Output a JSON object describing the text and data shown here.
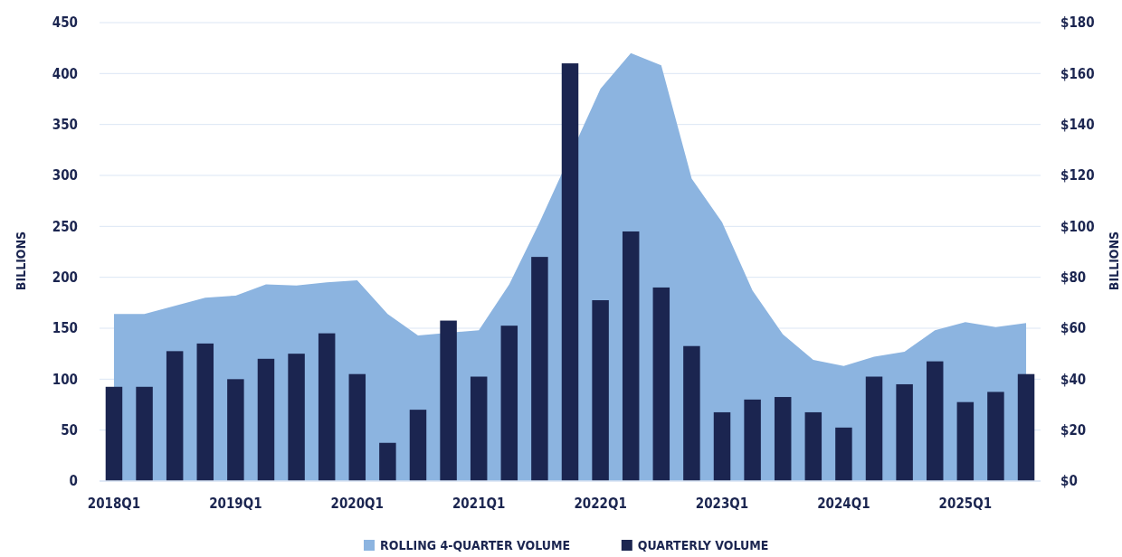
{
  "chart_data": {
    "type": "bar",
    "ylabel": "BILLIONS",
    "y2label": "BILLIONS",
    "categories": [
      "2018Q1",
      null,
      null,
      null,
      "2019Q1",
      null,
      null,
      null,
      "2020Q1",
      null,
      null,
      null,
      "2021Q1",
      null,
      null,
      null,
      "2022Q1",
      null,
      null,
      null,
      "2023Q1",
      null,
      null,
      null,
      "2024Q1",
      null,
      null,
      null,
      "2025Q1",
      null,
      null
    ],
    "series": [
      {
        "name": "ROLLING 4-QUARTER VOLUME",
        "type": "area",
        "color": "#8cb4e0",
        "values": [
          164,
          164,
          172,
          180,
          182,
          193,
          192,
          195,
          197,
          164,
          143,
          null,
          148,
          193,
          254,
          null,
          385,
          420,
          408,
          297,
          254,
          187,
          144,
          119,
          113,
          122,
          127,
          148,
          156,
          151,
          155
        ]
      },
      {
        "name": "QUARTERLY VOLUME",
        "axis": "y2",
        "color": "#1b2550",
        "values": [
          37,
          37,
          51,
          54,
          40,
          48,
          50,
          58,
          42,
          15,
          28,
          63,
          41,
          61,
          88,
          164,
          71,
          98,
          76,
          53,
          27,
          32,
          33,
          27,
          21,
          41,
          38,
          47,
          31,
          35,
          42
        ]
      }
    ],
    "ylim": [
      0,
      450
    ],
    "yticks": [
      0,
      50,
      100,
      150,
      200,
      250,
      300,
      350,
      400,
      450
    ],
    "y2lim": [
      0,
      180
    ],
    "y2ticks": [
      {
        "value": 0,
        "label": "$0"
      },
      {
        "value": 20,
        "label": "$20"
      },
      {
        "value": 40,
        "label": "$40"
      },
      {
        "value": 60,
        "label": "$60"
      },
      {
        "value": 80,
        "label": "$80"
      },
      {
        "value": 100,
        "label": "$100"
      },
      {
        "value": 120,
        "label": "$120"
      },
      {
        "value": 140,
        "label": "$140"
      },
      {
        "value": 160,
        "label": "$160"
      },
      {
        "value": 180,
        "label": "$180"
      }
    ],
    "grid": "y",
    "legend": "bottom"
  }
}
